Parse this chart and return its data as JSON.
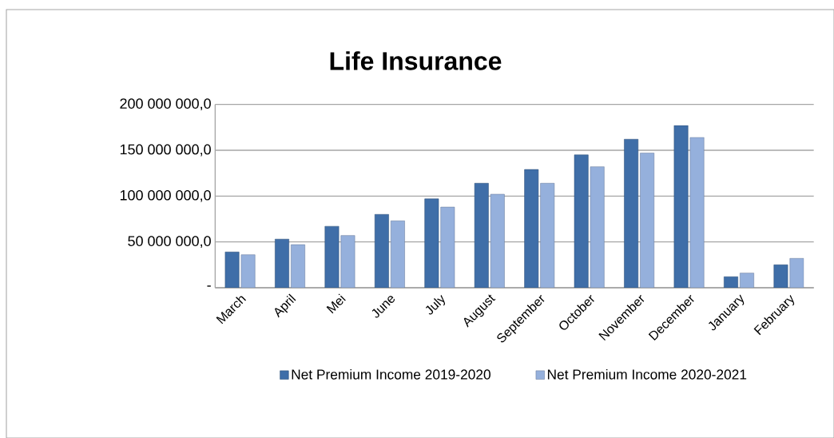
{
  "chart_data": {
    "type": "bar",
    "title": "Life Insurance",
    "categories": [
      "March",
      "April",
      "Mei",
      "June",
      "July",
      "August",
      "September",
      "October",
      "November",
      "December",
      "January",
      "February"
    ],
    "series": [
      {
        "name": "Net Premium Income 2019-2020",
        "color": "#3f6ea8",
        "values": [
          39000000,
          53000000,
          67000000,
          80000000,
          97000000,
          114000000,
          129000000,
          145000000,
          162000000,
          177000000,
          12000000,
          25000000
        ]
      },
      {
        "name": "Net Premium Income 2020-2021",
        "color": "#95b0dc",
        "values": [
          36000000,
          47000000,
          57000000,
          73000000,
          88000000,
          102000000,
          114000000,
          132000000,
          147000000,
          164000000,
          16000000,
          32000000
        ]
      }
    ],
    "ylim": [
      0,
      200000000
    ],
    "yticks": [
      {
        "value": 0,
        "label": "-"
      },
      {
        "value": 50000000,
        "label": "50 000 000,0"
      },
      {
        "value": 100000000,
        "label": "100 000 000,0"
      },
      {
        "value": 150000000,
        "label": "150 000 000,0"
      },
      {
        "value": 200000000,
        "label": "200 000 000,0"
      }
    ],
    "grid": "y",
    "legend": "bottom"
  }
}
